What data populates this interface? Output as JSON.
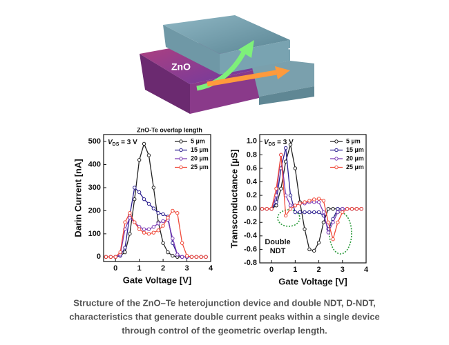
{
  "illustration": {
    "labels": [
      "ZnO",
      "Te"
    ]
  },
  "chart_data": [
    {
      "type": "line",
      "title": "ZnO-Te overlap length",
      "x_label": "Gate Voltage [V]",
      "y_label": "Darin Current [nA]",
      "annotation": {
        "var": "V",
        "sub": "DS",
        "rest": " = 3 V"
      },
      "xlim": [
        -0.5,
        4
      ],
      "xticks": [
        0,
        1,
        2,
        3,
        4
      ],
      "ylim": [
        -20,
        530
      ],
      "yticks": [
        0,
        100,
        200,
        300,
        400,
        500
      ],
      "x": [
        -0.4,
        -0.2,
        0,
        0.2,
        0.4,
        0.6,
        0.8,
        1.0,
        1.2,
        1.4,
        1.6,
        1.8,
        2.0,
        2.2,
        2.4,
        2.6,
        2.8,
        3.0,
        3.2,
        3.4,
        3.6,
        3.8
      ],
      "series": [
        {
          "name": "5 µm",
          "color": "#222222",
          "values": [
            0,
            0,
            0,
            5,
            20,
            100,
            250,
            420,
            490,
            440,
            300,
            150,
            60,
            20,
            5,
            0,
            0,
            0,
            0,
            0,
            0,
            0
          ]
        },
        {
          "name": "15 µm",
          "color": "#2b1f8f",
          "values": [
            0,
            0,
            0,
            5,
            40,
            180,
            300,
            280,
            250,
            230,
            210,
            190,
            185,
            175,
            60,
            10,
            0,
            0,
            0,
            0,
            0,
            0
          ]
        },
        {
          "name": "20 µm",
          "color": "#7b3bb5",
          "values": [
            0,
            0,
            0,
            10,
            120,
            170,
            150,
            130,
            120,
            120,
            130,
            145,
            155,
            160,
            80,
            10,
            0,
            0,
            0,
            0,
            0,
            0
          ]
        },
        {
          "name": "25 µm",
          "color": "#f04a3a",
          "values": [
            0,
            0,
            0,
            20,
            150,
            190,
            150,
            120,
            105,
            100,
            105,
            115,
            135,
            170,
            200,
            190,
            60,
            5,
            0,
            0,
            0,
            0
          ]
        }
      ]
    },
    {
      "type": "line",
      "x_label": "Gate Voltage [V]",
      "y_label": "Transconductance [µS]",
      "annotation": {
        "var": "V",
        "sub": "DS",
        "rest": " = 3 V"
      },
      "note": [
        "Double",
        "NDT"
      ],
      "xlim": [
        -0.5,
        4
      ],
      "xticks": [
        0,
        1,
        2,
        3,
        4
      ],
      "ylim": [
        -0.8,
        1.1
      ],
      "yticks": [
        -0.8,
        -0.6,
        -0.4,
        -0.2,
        {
          "value": 0,
          "label": "0.0"
        },
        0.2,
        0.4,
        0.6,
        0.8,
        {
          "value": 1,
          "label": "1.0"
        }
      ],
      "x": [
        -0.4,
        -0.2,
        0,
        0.2,
        0.4,
        0.6,
        0.8,
        1.0,
        1.2,
        1.4,
        1.6,
        1.8,
        2.0,
        2.2,
        2.4,
        2.6,
        2.8,
        3.0,
        3.2,
        3.4,
        3.6,
        3.8
      ],
      "series": [
        {
          "name": "5 µm",
          "color": "#222222",
          "values": [
            0,
            0,
            0,
            0.05,
            0.3,
            0.7,
            0.95,
            0.6,
            0.1,
            -0.3,
            -0.6,
            -0.62,
            -0.5,
            -0.2,
            0,
            0,
            0,
            0,
            0,
            0,
            0,
            0
          ]
        },
        {
          "name": "15 µm",
          "color": "#2b1f8f",
          "values": [
            0,
            0,
            0,
            0.1,
            0.6,
            0.9,
            0.2,
            -0.05,
            -0.05,
            -0.05,
            -0.05,
            -0.05,
            -0.05,
            -0.1,
            -0.3,
            -0.15,
            0,
            0,
            0,
            0,
            0,
            0
          ]
        },
        {
          "name": "20 µm",
          "color": "#7b3bb5",
          "values": [
            0,
            0,
            0,
            0.2,
            0.8,
            0.2,
            0.05,
            0.05,
            0.08,
            0.08,
            0.1,
            0.1,
            0.1,
            -0.05,
            -0.35,
            -0.2,
            -0.05,
            0,
            0,
            0,
            0,
            0
          ]
        },
        {
          "name": "25 µm",
          "color": "#f04a3a",
          "values": [
            0,
            0,
            0,
            0.3,
            0.8,
            -0.1,
            0.0,
            0.05,
            0.08,
            0.1,
            0.12,
            0.14,
            0.15,
            0.12,
            -0.2,
            -0.45,
            -0.2,
            -0.05,
            0,
            0,
            0,
            0
          ]
        }
      ]
    }
  ],
  "caption": [
    "Structure of the ZnO–Te heterojunction device and double NDT, D-NDT,",
    "characteristics that generate double current peaks within a single device",
    "through control of the geometric overlap length."
  ]
}
